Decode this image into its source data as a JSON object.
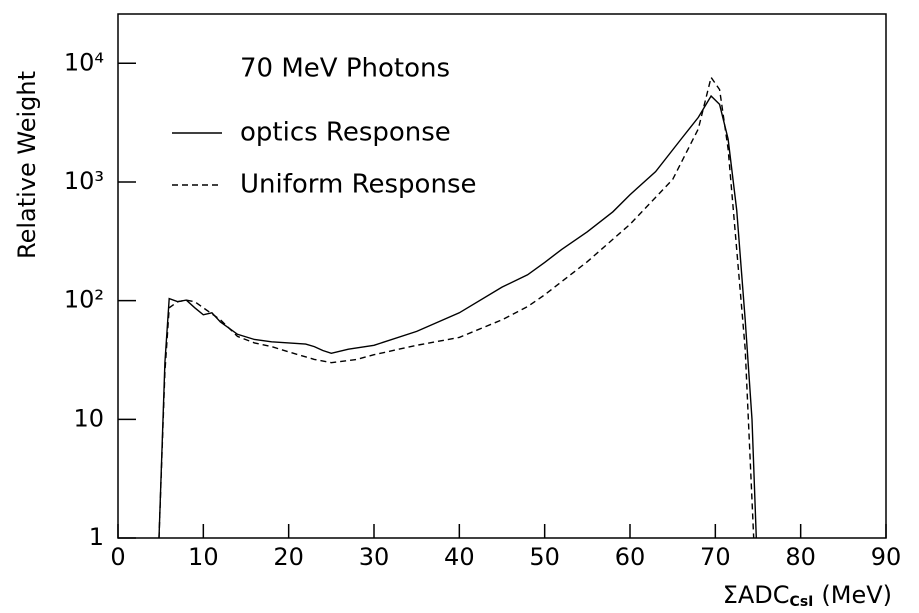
{
  "chart_data": {
    "type": "line",
    "annotation": "70 MeV Photons",
    "y_label": "Relative Weight",
    "x_label": {
      "main": "ΣADC",
      "subscript": "CsI",
      "unit": "(MeV)"
    },
    "xlim": [
      0,
      90
    ],
    "xticks": [
      0,
      10,
      20,
      30,
      40,
      50,
      60,
      70,
      80,
      90
    ],
    "ylim": [
      1,
      26000
    ],
    "log_y": true,
    "yticks": [
      1,
      10,
      {
        "value": 100,
        "label": "10²"
      },
      {
        "value": 1000,
        "label": "10³"
      },
      {
        "value": 10000,
        "label": "10⁴"
      }
    ],
    "series": [
      {
        "name": "optics Response",
        "color": "#000000",
        "style": "solid",
        "x": [
          4.8,
          5.5,
          6,
          7,
          8,
          9,
          10,
          11,
          12,
          14,
          16,
          18,
          20,
          22,
          23,
          24,
          25,
          27,
          30,
          35,
          40,
          45,
          48,
          50,
          52,
          55,
          58,
          60,
          63,
          66,
          68,
          69.5,
          70.5,
          71.5,
          72.5,
          73.5,
          74.3,
          74.8
        ],
        "values": [
          1,
          30,
          104,
          98,
          101,
          87,
          76,
          79,
          66,
          52,
          47,
          45,
          44,
          43,
          41,
          38,
          36,
          39,
          42,
          55,
          79,
          130,
          165,
          210,
          270,
          380,
          560,
          780,
          1220,
          2300,
          3500,
          5300,
          4500,
          2300,
          580,
          69,
          10,
          1
        ]
      },
      {
        "name": "Uniform Response",
        "color": "#000000",
        "style": "dashed",
        "x": [
          4.8,
          5.5,
          6,
          7,
          8,
          9,
          10,
          12,
          14,
          16,
          18,
          20,
          23,
          25,
          28,
          30,
          35,
          40,
          45,
          48,
          50,
          55,
          60,
          65,
          68,
          69.5,
          70.5,
          71.5,
          72.5,
          73.5,
          74.5
        ],
        "values": [
          1,
          25,
          87,
          98,
          101,
          98,
          87,
          69,
          50,
          44,
          41,
          37,
          32,
          30,
          32,
          35,
          42,
          49,
          69,
          89,
          112,
          213,
          440,
          1050,
          2800,
          7600,
          6000,
          1900,
          270,
          39,
          1
        ]
      }
    ]
  }
}
